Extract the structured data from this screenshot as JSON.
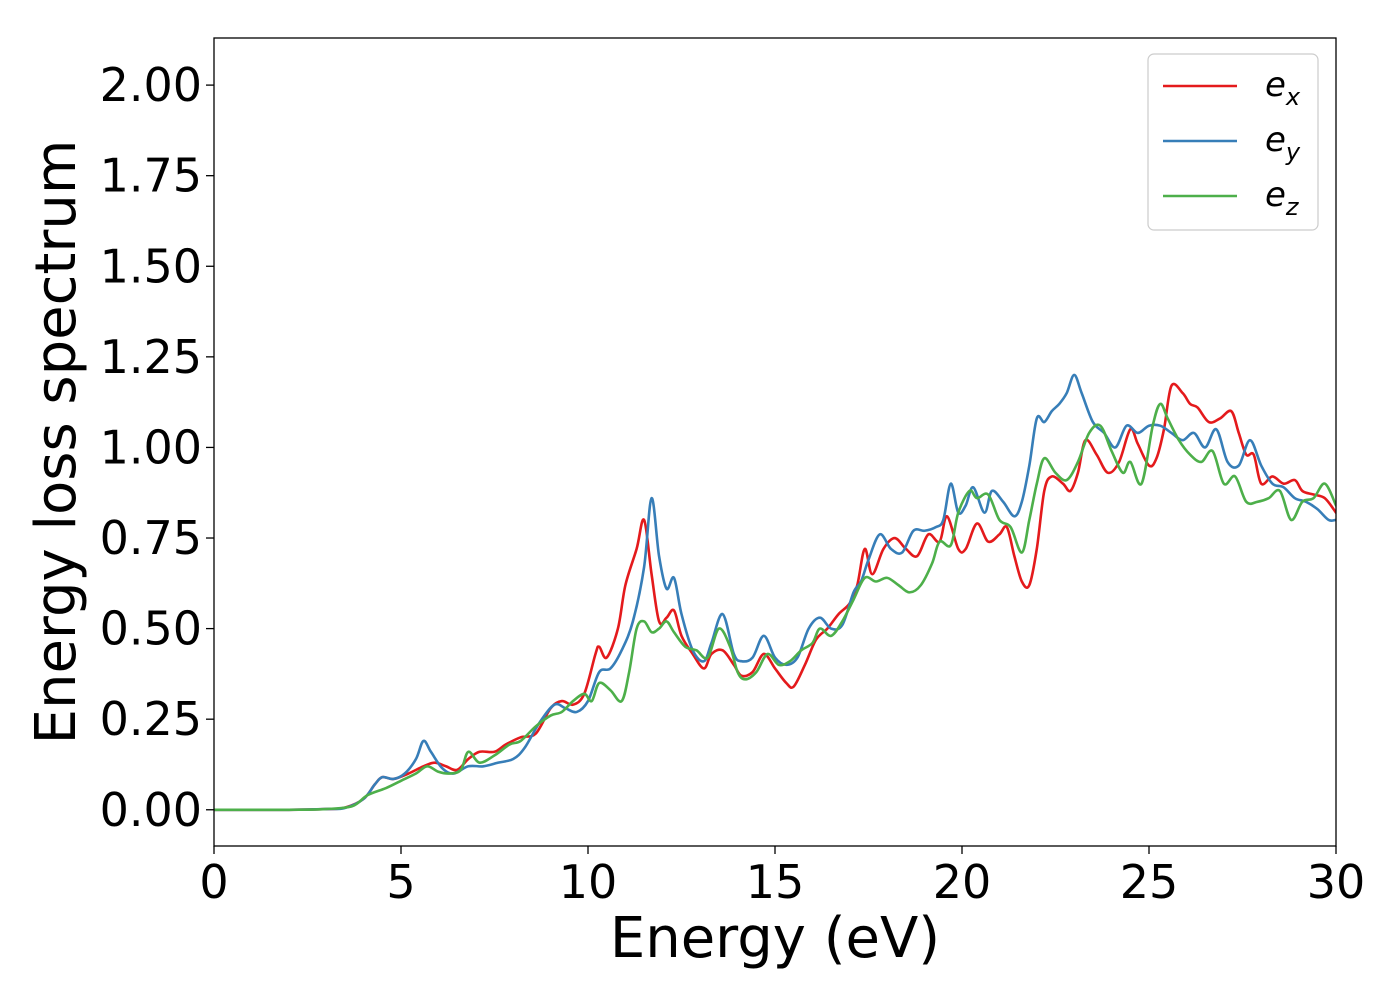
{
  "chart_data": {
    "type": "line",
    "xlabel": "Energy (eV)",
    "ylabel": "Energy loss spectrum",
    "xlim": [
      0,
      30
    ],
    "ylim": [
      -0.1,
      2.13
    ],
    "xticks": [
      0,
      5,
      10,
      15,
      20,
      25,
      30
    ],
    "xtick_labels": [
      "0",
      "5",
      "10",
      "15",
      "20",
      "25",
      "30"
    ],
    "yticks": [
      0,
      0.25,
      0.5,
      0.75,
      1.0,
      1.25,
      1.5,
      1.75,
      2.0
    ],
    "ytick_labels": [
      "0.00",
      "0.25",
      "0.50",
      "0.75",
      "1.00",
      "1.25",
      "1.50",
      "1.75",
      "2.00"
    ],
    "grid": false,
    "legend_position": "top-right",
    "colors": {
      "ex": "#e41a1c",
      "ey": "#377eb8",
      "ez": "#4daf4a"
    },
    "series": [
      {
        "name": "e_x",
        "legend_base": "e",
        "legend_sub": "x",
        "color": "#e41a1c",
        "points": [
          [
            0,
            0
          ],
          [
            2,
            0
          ],
          [
            3,
            0.002
          ],
          [
            3.5,
            0.006
          ],
          [
            4,
            0.03
          ],
          [
            4.3,
            0.07
          ],
          [
            4.5,
            0.09
          ],
          [
            4.8,
            0.085
          ],
          [
            5.2,
            0.1
          ],
          [
            5.6,
            0.12
          ],
          [
            5.9,
            0.13
          ],
          [
            6.2,
            0.12
          ],
          [
            6.5,
            0.11
          ],
          [
            6.8,
            0.14
          ],
          [
            7.1,
            0.16
          ],
          [
            7.5,
            0.16
          ],
          [
            7.8,
            0.18
          ],
          [
            8.2,
            0.2
          ],
          [
            8.6,
            0.21
          ],
          [
            9.0,
            0.28
          ],
          [
            9.3,
            0.3
          ],
          [
            9.6,
            0.29
          ],
          [
            9.9,
            0.32
          ],
          [
            10.2,
            0.43
          ],
          [
            10.3,
            0.45
          ],
          [
            10.5,
            0.42
          ],
          [
            10.8,
            0.5
          ],
          [
            11.0,
            0.62
          ],
          [
            11.3,
            0.72
          ],
          [
            11.5,
            0.8
          ],
          [
            11.7,
            0.65
          ],
          [
            11.9,
            0.52
          ],
          [
            12.1,
            0.53
          ],
          [
            12.3,
            0.55
          ],
          [
            12.5,
            0.48
          ],
          [
            12.8,
            0.43
          ],
          [
            13.1,
            0.39
          ],
          [
            13.3,
            0.43
          ],
          [
            13.6,
            0.44
          ],
          [
            13.9,
            0.4
          ],
          [
            14.1,
            0.37
          ],
          [
            14.4,
            0.38
          ],
          [
            14.7,
            0.43
          ],
          [
            15.0,
            0.39
          ],
          [
            15.3,
            0.35
          ],
          [
            15.5,
            0.34
          ],
          [
            15.8,
            0.4
          ],
          [
            16.1,
            0.47
          ],
          [
            16.4,
            0.5
          ],
          [
            16.7,
            0.54
          ],
          [
            17.0,
            0.57
          ],
          [
            17.2,
            0.62
          ],
          [
            17.4,
            0.72
          ],
          [
            17.6,
            0.65
          ],
          [
            17.9,
            0.72
          ],
          [
            18.2,
            0.75
          ],
          [
            18.5,
            0.72
          ],
          [
            18.8,
            0.7
          ],
          [
            19.1,
            0.76
          ],
          [
            19.4,
            0.74
          ],
          [
            19.6,
            0.81
          ],
          [
            19.9,
            0.72
          ],
          [
            20.1,
            0.72
          ],
          [
            20.4,
            0.79
          ],
          [
            20.7,
            0.74
          ],
          [
            21.0,
            0.76
          ],
          [
            21.2,
            0.78
          ],
          [
            21.4,
            0.7
          ],
          [
            21.6,
            0.63
          ],
          [
            21.8,
            0.62
          ],
          [
            22.0,
            0.72
          ],
          [
            22.2,
            0.88
          ],
          [
            22.4,
            0.92
          ],
          [
            22.7,
            0.9
          ],
          [
            22.9,
            0.88
          ],
          [
            23.1,
            0.93
          ],
          [
            23.3,
            1.02
          ],
          [
            23.6,
            0.98
          ],
          [
            23.9,
            0.93
          ],
          [
            24.2,
            0.96
          ],
          [
            24.5,
            1.05
          ],
          [
            24.7,
            1.01
          ],
          [
            25.0,
            0.95
          ],
          [
            25.2,
            0.97
          ],
          [
            25.4,
            1.05
          ],
          [
            25.6,
            1.17
          ],
          [
            25.9,
            1.15
          ],
          [
            26.1,
            1.12
          ],
          [
            26.3,
            1.11
          ],
          [
            26.6,
            1.07
          ],
          [
            26.9,
            1.08
          ],
          [
            27.2,
            1.1
          ],
          [
            27.4,
            1.04
          ],
          [
            27.6,
            0.98
          ],
          [
            27.8,
            0.98
          ],
          [
            28.0,
            0.9
          ],
          [
            28.3,
            0.92
          ],
          [
            28.6,
            0.9
          ],
          [
            28.9,
            0.91
          ],
          [
            29.1,
            0.88
          ],
          [
            29.4,
            0.87
          ],
          [
            29.7,
            0.86
          ],
          [
            30.0,
            0.82
          ]
        ]
      },
      {
        "name": "e_y",
        "legend_base": "e",
        "legend_sub": "y",
        "color": "#377eb8",
        "points": [
          [
            0,
            0
          ],
          [
            2,
            0
          ],
          [
            3,
            0.002
          ],
          [
            3.5,
            0.005
          ],
          [
            4,
            0.03
          ],
          [
            4.3,
            0.07
          ],
          [
            4.5,
            0.09
          ],
          [
            4.8,
            0.085
          ],
          [
            5.1,
            0.1
          ],
          [
            5.4,
            0.14
          ],
          [
            5.6,
            0.19
          ],
          [
            5.8,
            0.16
          ],
          [
            6.1,
            0.115
          ],
          [
            6.4,
            0.1
          ],
          [
            6.8,
            0.12
          ],
          [
            7.2,
            0.12
          ],
          [
            7.6,
            0.13
          ],
          [
            8.0,
            0.14
          ],
          [
            8.3,
            0.17
          ],
          [
            8.7,
            0.24
          ],
          [
            9.1,
            0.29
          ],
          [
            9.4,
            0.28
          ],
          [
            9.7,
            0.27
          ],
          [
            10.0,
            0.3
          ],
          [
            10.3,
            0.38
          ],
          [
            10.6,
            0.39
          ],
          [
            10.9,
            0.44
          ],
          [
            11.2,
            0.52
          ],
          [
            11.5,
            0.67
          ],
          [
            11.7,
            0.86
          ],
          [
            11.9,
            0.7
          ],
          [
            12.1,
            0.61
          ],
          [
            12.3,
            0.64
          ],
          [
            12.5,
            0.54
          ],
          [
            12.8,
            0.44
          ],
          [
            13.1,
            0.41
          ],
          [
            13.3,
            0.46
          ],
          [
            13.6,
            0.54
          ],
          [
            13.9,
            0.43
          ],
          [
            14.1,
            0.41
          ],
          [
            14.4,
            0.42
          ],
          [
            14.7,
            0.48
          ],
          [
            15.0,
            0.42
          ],
          [
            15.3,
            0.4
          ],
          [
            15.6,
            0.42
          ],
          [
            15.9,
            0.5
          ],
          [
            16.2,
            0.53
          ],
          [
            16.5,
            0.5
          ],
          [
            16.8,
            0.51
          ],
          [
            17.1,
            0.6
          ],
          [
            17.3,
            0.63
          ],
          [
            17.5,
            0.69
          ],
          [
            17.8,
            0.76
          ],
          [
            18.1,
            0.72
          ],
          [
            18.4,
            0.71
          ],
          [
            18.7,
            0.77
          ],
          [
            19.0,
            0.77
          ],
          [
            19.3,
            0.78
          ],
          [
            19.5,
            0.8
          ],
          [
            19.7,
            0.9
          ],
          [
            19.9,
            0.82
          ],
          [
            20.1,
            0.84
          ],
          [
            20.3,
            0.89
          ],
          [
            20.6,
            0.82
          ],
          [
            20.8,
            0.88
          ],
          [
            21.1,
            0.85
          ],
          [
            21.4,
            0.81
          ],
          [
            21.6,
            0.85
          ],
          [
            21.8,
            0.95
          ],
          [
            22.0,
            1.08
          ],
          [
            22.2,
            1.07
          ],
          [
            22.4,
            1.1
          ],
          [
            22.6,
            1.12
          ],
          [
            22.8,
            1.15
          ],
          [
            23.0,
            1.2
          ],
          [
            23.2,
            1.15
          ],
          [
            23.5,
            1.07
          ],
          [
            23.8,
            1.04
          ],
          [
            24.1,
            1.0
          ],
          [
            24.4,
            1.06
          ],
          [
            24.7,
            1.04
          ],
          [
            25.0,
            1.06
          ],
          [
            25.3,
            1.06
          ],
          [
            25.6,
            1.04
          ],
          [
            25.9,
            1.02
          ],
          [
            26.2,
            1.04
          ],
          [
            26.5,
            1.0
          ],
          [
            26.8,
            1.05
          ],
          [
            27.1,
            0.96
          ],
          [
            27.4,
            0.95
          ],
          [
            27.7,
            1.02
          ],
          [
            28.0,
            0.95
          ],
          [
            28.3,
            0.9
          ],
          [
            28.6,
            0.89
          ],
          [
            28.9,
            0.86
          ],
          [
            29.2,
            0.85
          ],
          [
            29.5,
            0.83
          ],
          [
            29.8,
            0.8
          ],
          [
            30.0,
            0.8
          ]
        ]
      },
      {
        "name": "e_z",
        "legend_base": "e",
        "legend_sub": "z",
        "color": "#4daf4a",
        "points": [
          [
            0,
            0
          ],
          [
            2,
            0
          ],
          [
            3,
            0.002
          ],
          [
            3.7,
            0.01
          ],
          [
            4.1,
            0.04
          ],
          [
            4.6,
            0.06
          ],
          [
            5.0,
            0.08
          ],
          [
            5.4,
            0.1
          ],
          [
            5.7,
            0.12
          ],
          [
            6.0,
            0.105
          ],
          [
            6.3,
            0.1
          ],
          [
            6.6,
            0.11
          ],
          [
            6.8,
            0.16
          ],
          [
            7.1,
            0.13
          ],
          [
            7.5,
            0.15
          ],
          [
            7.9,
            0.18
          ],
          [
            8.2,
            0.19
          ],
          [
            8.6,
            0.23
          ],
          [
            9.0,
            0.26
          ],
          [
            9.3,
            0.27
          ],
          [
            9.6,
            0.3
          ],
          [
            9.9,
            0.32
          ],
          [
            10.1,
            0.3
          ],
          [
            10.3,
            0.35
          ],
          [
            10.6,
            0.33
          ],
          [
            10.9,
            0.3
          ],
          [
            11.1,
            0.38
          ],
          [
            11.3,
            0.5
          ],
          [
            11.5,
            0.52
          ],
          [
            11.7,
            0.49
          ],
          [
            11.9,
            0.5
          ],
          [
            12.1,
            0.52
          ],
          [
            12.3,
            0.49
          ],
          [
            12.6,
            0.45
          ],
          [
            12.9,
            0.44
          ],
          [
            13.2,
            0.42
          ],
          [
            13.5,
            0.5
          ],
          [
            13.8,
            0.45
          ],
          [
            14.0,
            0.38
          ],
          [
            14.2,
            0.36
          ],
          [
            14.5,
            0.38
          ],
          [
            14.8,
            0.43
          ],
          [
            15.1,
            0.4
          ],
          [
            15.4,
            0.41
          ],
          [
            15.7,
            0.44
          ],
          [
            16.0,
            0.46
          ],
          [
            16.2,
            0.5
          ],
          [
            16.5,
            0.48
          ],
          [
            16.8,
            0.52
          ],
          [
            17.1,
            0.58
          ],
          [
            17.4,
            0.64
          ],
          [
            17.7,
            0.63
          ],
          [
            18.0,
            0.64
          ],
          [
            18.3,
            0.62
          ],
          [
            18.6,
            0.6
          ],
          [
            18.9,
            0.62
          ],
          [
            19.2,
            0.68
          ],
          [
            19.4,
            0.74
          ],
          [
            19.7,
            0.73
          ],
          [
            19.9,
            0.82
          ],
          [
            20.2,
            0.88
          ],
          [
            20.4,
            0.86
          ],
          [
            20.7,
            0.87
          ],
          [
            21.0,
            0.8
          ],
          [
            21.3,
            0.78
          ],
          [
            21.6,
            0.71
          ],
          [
            21.8,
            0.8
          ],
          [
            22.0,
            0.9
          ],
          [
            22.2,
            0.97
          ],
          [
            22.5,
            0.93
          ],
          [
            22.8,
            0.91
          ],
          [
            23.1,
            0.96
          ],
          [
            23.4,
            1.04
          ],
          [
            23.7,
            1.06
          ],
          [
            24.0,
            0.99
          ],
          [
            24.3,
            0.93
          ],
          [
            24.5,
            0.96
          ],
          [
            24.8,
            0.9
          ],
          [
            25.1,
            1.06
          ],
          [
            25.3,
            1.12
          ],
          [
            25.5,
            1.08
          ],
          [
            25.8,
            1.02
          ],
          [
            26.1,
            0.98
          ],
          [
            26.4,
            0.96
          ],
          [
            26.7,
            0.99
          ],
          [
            27.0,
            0.9
          ],
          [
            27.3,
            0.92
          ],
          [
            27.6,
            0.85
          ],
          [
            27.9,
            0.85
          ],
          [
            28.2,
            0.86
          ],
          [
            28.5,
            0.88
          ],
          [
            28.8,
            0.8
          ],
          [
            29.1,
            0.85
          ],
          [
            29.4,
            0.86
          ],
          [
            29.7,
            0.9
          ],
          [
            30.0,
            0.84
          ]
        ]
      }
    ]
  }
}
